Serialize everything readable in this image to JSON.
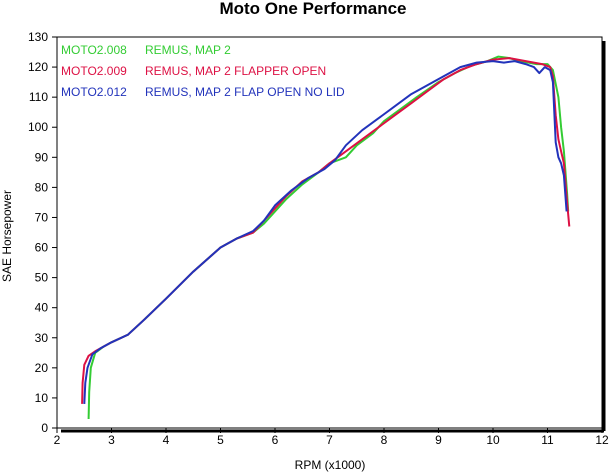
{
  "chart_data": {
    "type": "line",
    "title": "Moto One Performance",
    "xlabel": "RPM (x1000)",
    "ylabel": "SAE Horsepower",
    "xlim": [
      2,
      12
    ],
    "ylim": [
      0,
      130
    ],
    "xticks": [
      2,
      3,
      4,
      5,
      6,
      7,
      8,
      9,
      10,
      11,
      12
    ],
    "yticks": [
      0,
      10,
      20,
      30,
      40,
      50,
      60,
      70,
      80,
      90,
      100,
      110,
      120,
      130
    ],
    "grid": false,
    "legend_position": "top-left",
    "series": [
      {
        "name": "MOTO2.008 REMUS, MAP 2",
        "legend_left": "MOTO2.008",
        "legend_right": "REMUS, MAP 2",
        "color": "#33cc33",
        "points": [
          [
            2.58,
            3
          ],
          [
            2.59,
            12
          ],
          [
            2.62,
            20
          ],
          [
            2.7,
            25
          ],
          [
            2.85,
            27
          ],
          [
            3.0,
            28.5
          ],
          [
            3.3,
            31
          ],
          [
            3.6,
            36
          ],
          [
            4.0,
            43
          ],
          [
            4.5,
            52
          ],
          [
            5.0,
            60
          ],
          [
            5.3,
            63
          ],
          [
            5.6,
            65
          ],
          [
            5.8,
            68
          ],
          [
            6.0,
            72
          ],
          [
            6.2,
            76
          ],
          [
            6.5,
            81
          ],
          [
            6.8,
            85
          ],
          [
            7.0,
            88
          ],
          [
            7.3,
            90
          ],
          [
            7.5,
            94
          ],
          [
            7.8,
            98
          ],
          [
            8.0,
            102
          ],
          [
            8.3,
            106
          ],
          [
            8.6,
            110
          ],
          [
            9.0,
            115
          ],
          [
            9.3,
            118
          ],
          [
            9.6,
            120.5
          ],
          [
            9.9,
            122
          ],
          [
            10.1,
            123.5
          ],
          [
            10.3,
            123
          ],
          [
            10.5,
            122
          ],
          [
            10.8,
            121
          ],
          [
            11.0,
            121
          ],
          [
            11.1,
            119
          ],
          [
            11.2,
            110
          ],
          [
            11.25,
            100
          ],
          [
            11.3,
            92
          ],
          [
            11.36,
            78
          ],
          [
            11.38,
            72
          ]
        ]
      },
      {
        "name": "MOTO2.009 REMUS, MAP 2 FLAPPER OPEN",
        "legend_left": "MOTO2.009",
        "legend_right": "REMUS, MAP 2 FLAPPER OPEN",
        "color": "#dd1144",
        "points": [
          [
            2.46,
            8
          ],
          [
            2.47,
            15
          ],
          [
            2.5,
            21
          ],
          [
            2.58,
            24
          ],
          [
            2.7,
            25.5
          ],
          [
            2.85,
            27
          ],
          [
            3.0,
            28.5
          ],
          [
            3.3,
            31
          ],
          [
            3.6,
            36
          ],
          [
            4.0,
            43
          ],
          [
            4.5,
            52
          ],
          [
            5.0,
            60
          ],
          [
            5.3,
            63
          ],
          [
            5.6,
            65
          ],
          [
            5.8,
            69
          ],
          [
            6.0,
            73
          ],
          [
            6.2,
            77
          ],
          [
            6.5,
            82
          ],
          [
            6.8,
            85
          ],
          [
            7.0,
            88
          ],
          [
            7.3,
            92
          ],
          [
            7.6,
            96
          ],
          [
            7.9,
            100
          ],
          [
            8.2,
            104
          ],
          [
            8.5,
            108
          ],
          [
            8.8,
            112
          ],
          [
            9.1,
            116
          ],
          [
            9.4,
            119
          ],
          [
            9.7,
            121
          ],
          [
            10.0,
            122.5
          ],
          [
            10.3,
            123
          ],
          [
            10.6,
            122
          ],
          [
            10.9,
            121
          ],
          [
            11.05,
            120
          ],
          [
            11.1,
            117
          ],
          [
            11.15,
            104
          ],
          [
            11.2,
            96
          ],
          [
            11.25,
            92
          ],
          [
            11.3,
            88
          ],
          [
            11.36,
            75
          ],
          [
            11.4,
            67
          ]
        ]
      },
      {
        "name": "MOTO2.012 REMUS, MAP 2 FLAP OPEN NO LID",
        "legend_left": "MOTO2.012",
        "legend_right": "REMUS, MAP 2 FLAP OPEN NO LID",
        "color": "#2233bb",
        "points": [
          [
            2.5,
            8
          ],
          [
            2.52,
            15
          ],
          [
            2.56,
            20
          ],
          [
            2.65,
            24.5
          ],
          [
            2.8,
            26.5
          ],
          [
            3.0,
            28.5
          ],
          [
            3.3,
            31
          ],
          [
            3.6,
            36
          ],
          [
            4.0,
            43
          ],
          [
            4.5,
            52
          ],
          [
            5.0,
            60
          ],
          [
            5.3,
            63
          ],
          [
            5.6,
            65.5
          ],
          [
            5.8,
            69
          ],
          [
            6.0,
            74
          ],
          [
            6.3,
            79
          ],
          [
            6.6,
            83
          ],
          [
            6.9,
            86
          ],
          [
            7.1,
            89
          ],
          [
            7.3,
            94
          ],
          [
            7.6,
            99
          ],
          [
            7.9,
            103
          ],
          [
            8.2,
            107
          ],
          [
            8.5,
            111
          ],
          [
            8.8,
            114
          ],
          [
            9.1,
            117
          ],
          [
            9.4,
            120
          ],
          [
            9.7,
            121.5
          ],
          [
            10.0,
            122
          ],
          [
            10.2,
            121.5
          ],
          [
            10.4,
            122
          ],
          [
            10.6,
            121
          ],
          [
            10.75,
            120
          ],
          [
            10.85,
            118
          ],
          [
            10.95,
            120
          ],
          [
            11.05,
            119
          ],
          [
            11.1,
            115
          ],
          [
            11.15,
            95
          ],
          [
            11.2,
            90
          ],
          [
            11.25,
            88
          ],
          [
            11.3,
            84
          ],
          [
            11.35,
            72
          ]
        ]
      }
    ]
  }
}
